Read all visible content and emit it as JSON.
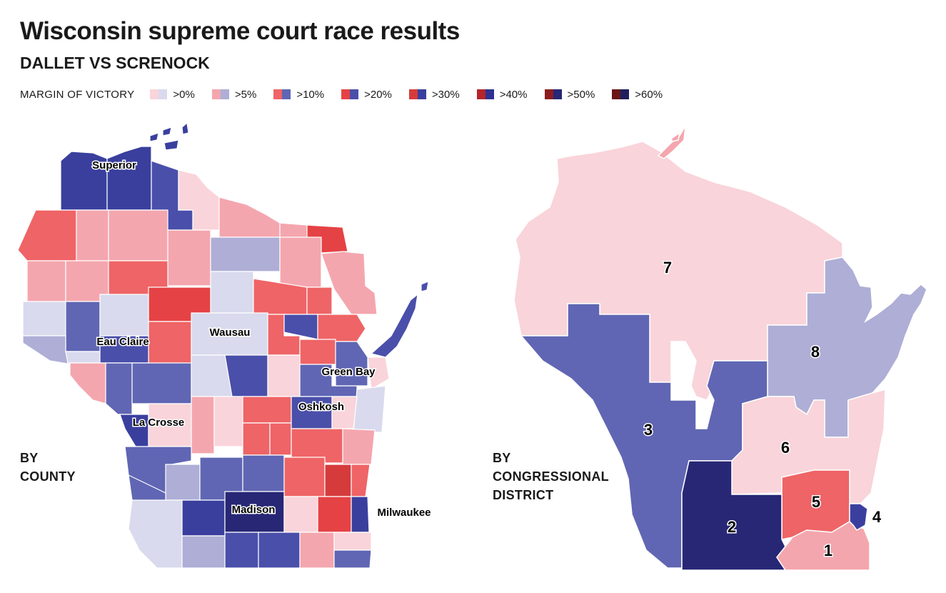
{
  "header": {
    "title": "Wisconsin supreme court race results",
    "subtitle": "DALLET VS SCRENOCK"
  },
  "legend": {
    "label": "MARGIN OF VICTORY",
    "items": [
      {
        "label": ">0%",
        "colors": [
          "#f9d4da",
          "#d9daee"
        ]
      },
      {
        "label": ">5%",
        "colors": [
          "#f4a6ae",
          "#aeaed6"
        ]
      },
      {
        "label": ">10%",
        "colors": [
          "#ef6466",
          "#6066b3"
        ]
      },
      {
        "label": ">20%",
        "colors": [
          "#e54245",
          "#4a4faa"
        ]
      },
      {
        "label": ">30%",
        "colors": [
          "#d53b3b",
          "#3a3f9e"
        ]
      },
      {
        "label": ">40%",
        "colors": [
          "#b5252a",
          "#2e3190"
        ]
      },
      {
        "label": ">50%",
        "colors": [
          "#8c1d1f",
          "#272776"
        ]
      },
      {
        "label": ">60%",
        "colors": [
          "#6a1619",
          "#1f1f5e"
        ]
      }
    ]
  },
  "county_map": {
    "side_label": [
      "BY",
      "COUNTY"
    ],
    "cities": [
      "Superior",
      "Eau Claire",
      "Wausau",
      "Green Bay",
      "Oshkosh",
      "La Crosse",
      "Madison",
      "Milwaukee"
    ]
  },
  "district_map": {
    "side_label": [
      "BY",
      "CONGRESSIONAL",
      "DISTRICT"
    ],
    "districts": [
      {
        "label": "7",
        "color": "#f9d4da"
      },
      {
        "label": "8",
        "color": "#aeaed6"
      },
      {
        "label": "3",
        "color": "#6066b3"
      },
      {
        "label": "6",
        "color": "#f9d4da"
      },
      {
        "label": "5",
        "color": "#ef6466"
      },
      {
        "label": "2",
        "color": "#272776"
      },
      {
        "label": "1",
        "color": "#f4a6ae"
      },
      {
        "label": "4",
        "color": "#3a3f9e"
      }
    ]
  }
}
